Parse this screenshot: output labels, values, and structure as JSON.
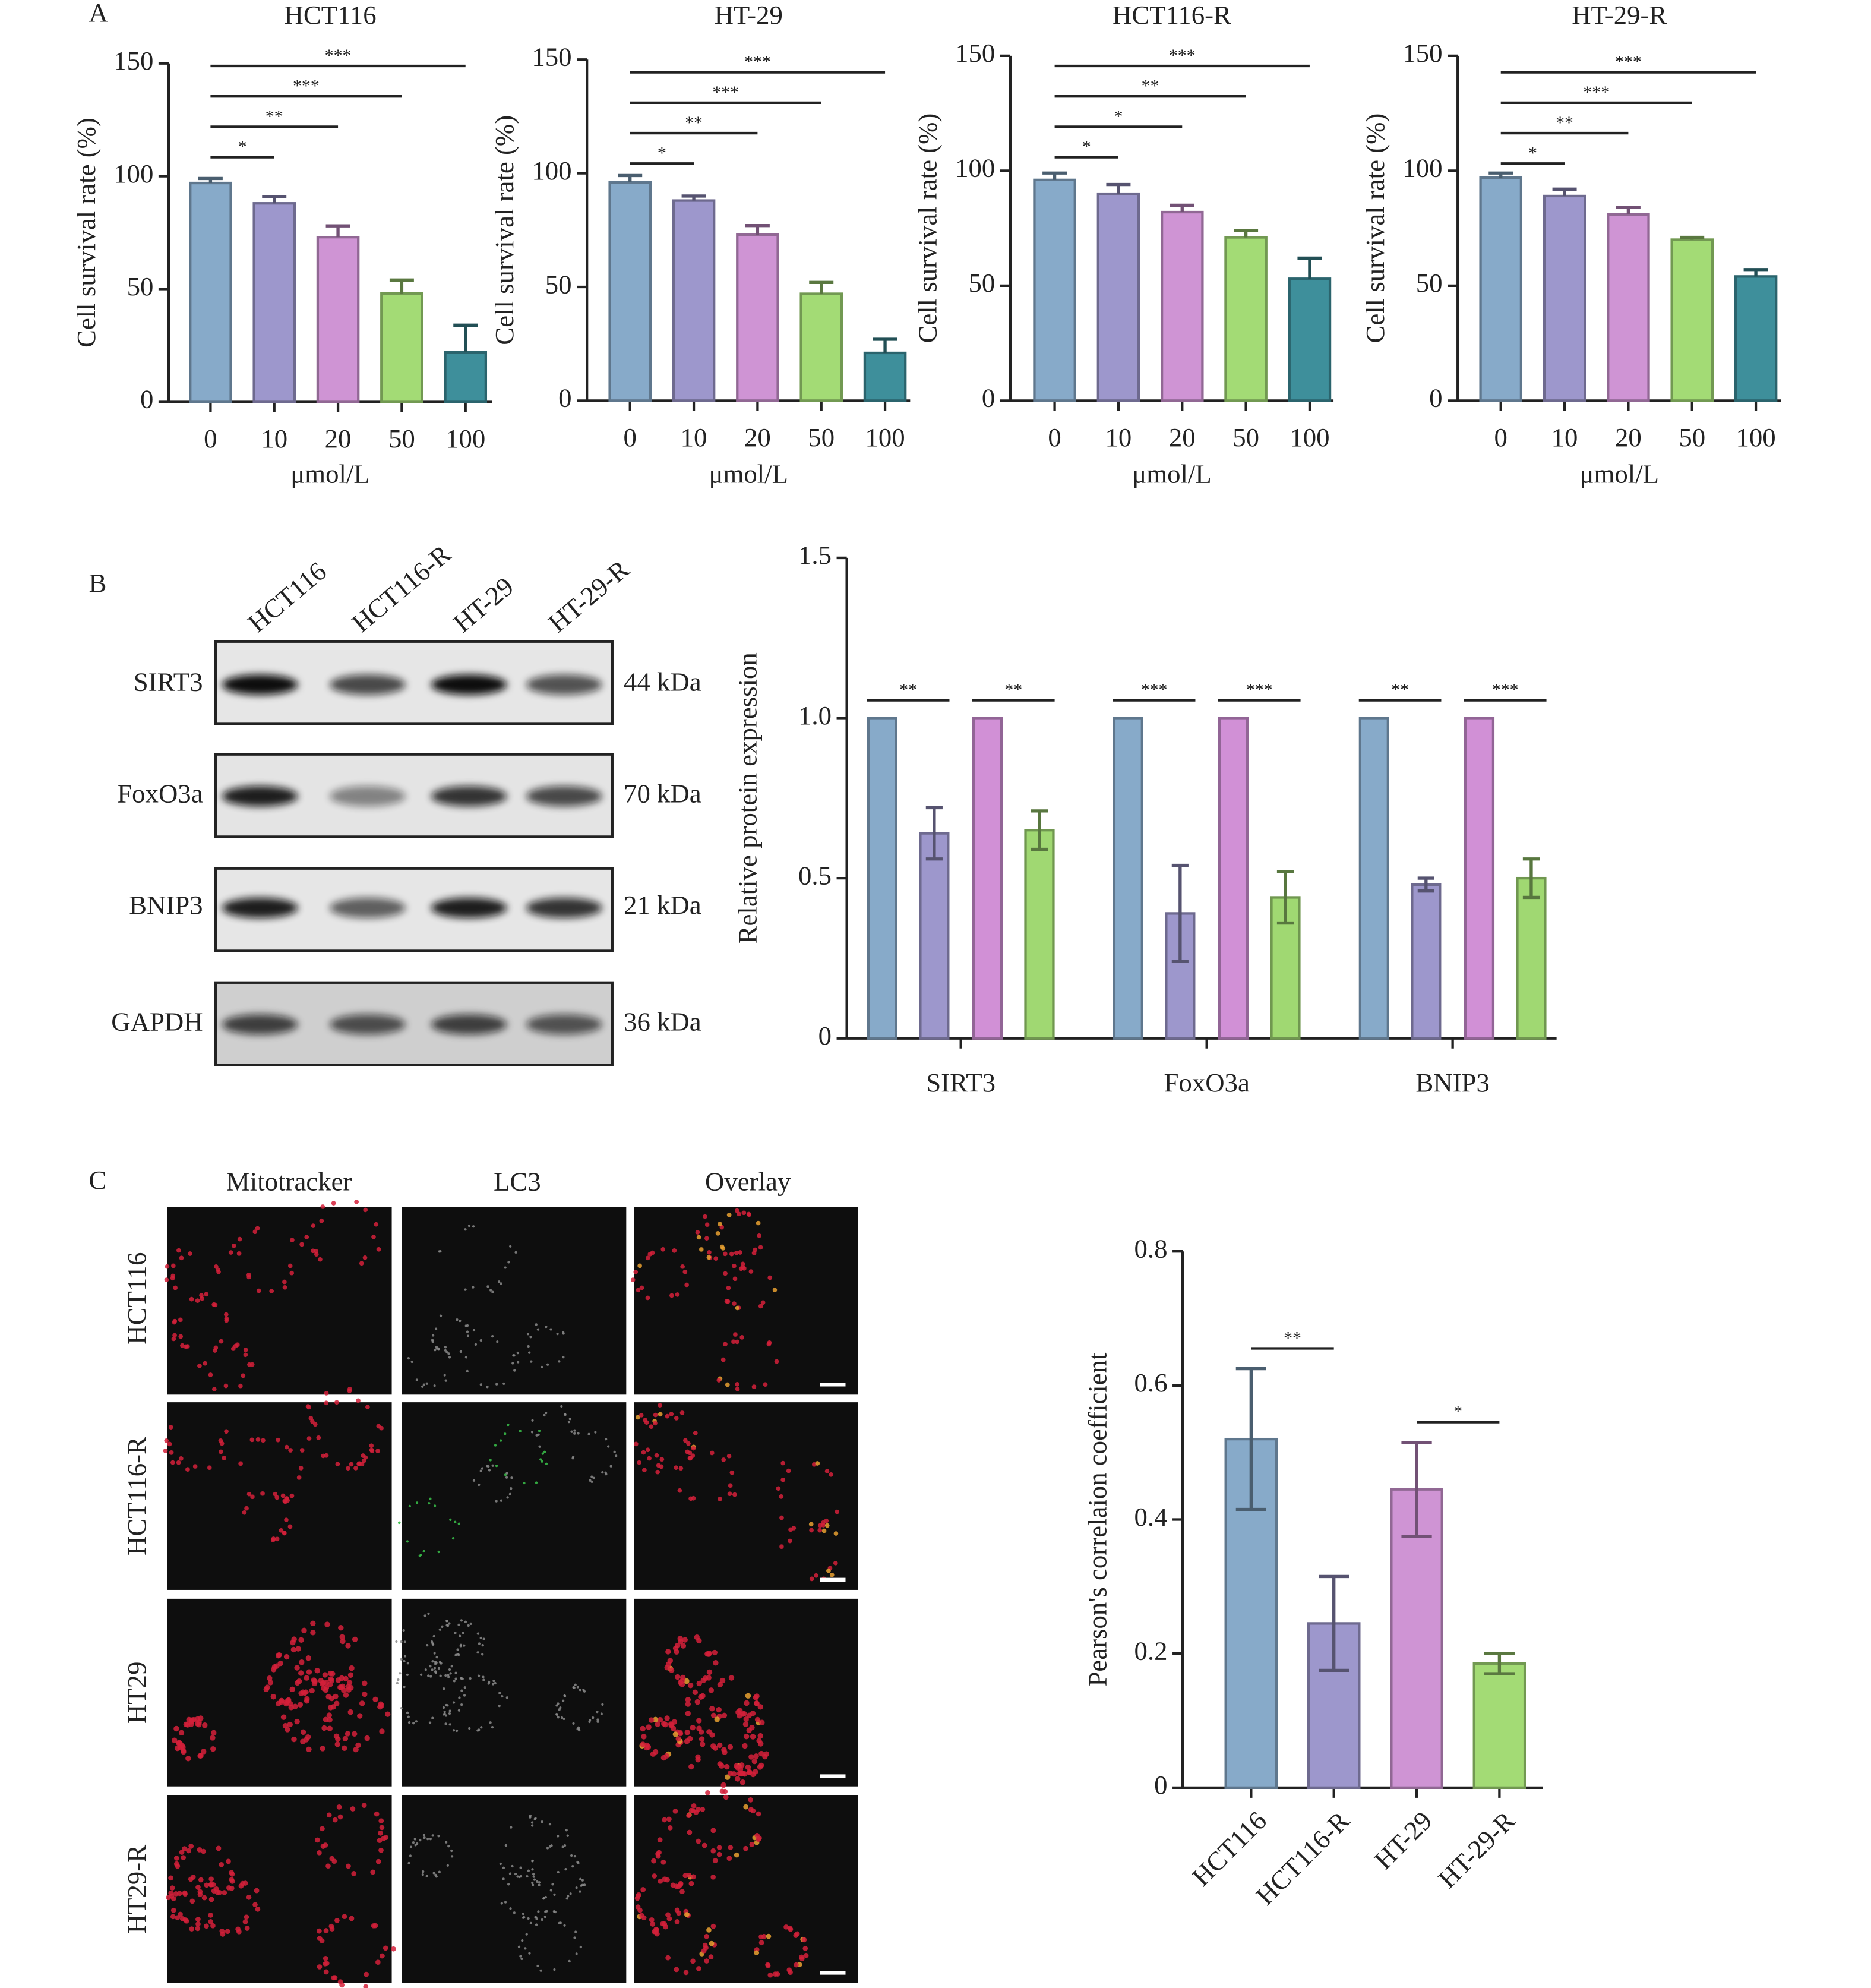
{
  "panel_labels": [
    "A",
    "B",
    "C"
  ],
  "chart_data": [
    {
      "type": "bar",
      "title": "HCT116",
      "xlabel": "μmol/L",
      "ylabel": "Cell survival rate (%)",
      "categories": [
        "0",
        "10",
        "20",
        "50",
        "100"
      ],
      "values": [
        97,
        88,
        73,
        48,
        22
      ],
      "errors": [
        2,
        3,
        5,
        6,
        12
      ],
      "colors": [
        "#87aac9",
        "#9d97cc",
        "#cf94d4",
        "#a3db75",
        "#3e8f9b"
      ],
      "ylim": [
        0,
        150
      ],
      "yticks": [
        0,
        50,
        100,
        150
      ],
      "error_bars": "up",
      "comparisons": [
        {
          "text": "*",
          "between": [
            0,
            1
          ]
        },
        {
          "text": "**",
          "between": [
            0,
            2
          ]
        },
        {
          "text": "***",
          "between": [
            0,
            3
          ]
        },
        {
          "text": "***",
          "between": [
            0,
            4
          ]
        }
      ]
    },
    {
      "type": "bar",
      "title": "HT-29",
      "xlabel": "μmol/L",
      "ylabel": "Cell survival rate (%)",
      "categories": [
        "0",
        "10",
        "20",
        "50",
        "100"
      ],
      "values": [
        96,
        88,
        73,
        47,
        21
      ],
      "errors": [
        3,
        2,
        4,
        5,
        6
      ],
      "colors": [
        "#87aac9",
        "#9d97cc",
        "#cf94d4",
        "#a3db75",
        "#3e8f9b"
      ],
      "ylim": [
        0,
        150
      ],
      "yticks": [
        0,
        50,
        100,
        150
      ],
      "error_bars": "up",
      "comparisons": [
        {
          "text": "*",
          "between": [
            0,
            1
          ]
        },
        {
          "text": "**",
          "between": [
            0,
            2
          ]
        },
        {
          "text": "***",
          "between": [
            0,
            3
          ]
        },
        {
          "text": "***",
          "between": [
            0,
            4
          ]
        }
      ]
    },
    {
      "type": "bar",
      "title": "HCT116-R",
      "xlabel": "μmol/L",
      "ylabel": "Cell survival rate (%)",
      "categories": [
        "0",
        "10",
        "20",
        "50",
        "100"
      ],
      "values": [
        96,
        90,
        82,
        71,
        53
      ],
      "errors": [
        3,
        4,
        3,
        3,
        9
      ],
      "colors": [
        "#87aac9",
        "#9d97cc",
        "#cf94d4",
        "#a3db75",
        "#3e8f9b"
      ],
      "ylim": [
        0,
        150
      ],
      "yticks": [
        0,
        50,
        100,
        150
      ],
      "error_bars": "up",
      "comparisons": [
        {
          "text": "*",
          "between": [
            0,
            1
          ]
        },
        {
          "text": "*",
          "between": [
            0,
            2
          ]
        },
        {
          "text": "**",
          "between": [
            0,
            3
          ]
        },
        {
          "text": "***",
          "between": [
            0,
            4
          ]
        }
      ]
    },
    {
      "type": "bar",
      "title": "HT-29-R",
      "xlabel": "μmol/L",
      "ylabel": "Cell survival rate (%)",
      "categories": [
        "0",
        "10",
        "20",
        "50",
        "100"
      ],
      "values": [
        97,
        89,
        81,
        70,
        54
      ],
      "errors": [
        2,
        3,
        3,
        1,
        3
      ],
      "colors": [
        "#87aac9",
        "#9d97cc",
        "#cf94d4",
        "#a3db75",
        "#3e8f9b"
      ],
      "ylim": [
        0,
        150
      ],
      "yticks": [
        0,
        50,
        100,
        150
      ],
      "error_bars": "up",
      "comparisons": [
        {
          "text": "*",
          "between": [
            0,
            1
          ]
        },
        {
          "text": "**",
          "between": [
            0,
            2
          ]
        },
        {
          "text": "***",
          "between": [
            0,
            3
          ]
        },
        {
          "text": "***",
          "between": [
            0,
            4
          ]
        }
      ]
    },
    {
      "type": "bar",
      "ylabel": "Relative protein expression",
      "categories": [
        "SIRT3",
        "FoxO3a",
        "BNIP3"
      ],
      "series": [
        {
          "color": "#87aac9",
          "values": [
            1,
            1,
            1
          ]
        },
        {
          "color": "#9d97cc",
          "values": [
            0.64,
            0.39,
            0.48
          ],
          "errors": [
            0.08,
            0.15,
            0.02
          ]
        },
        {
          "color": "#d190d6",
          "values": [
            1,
            1,
            1
          ]
        },
        {
          "color": "#a0d872",
          "values": [
            0.65,
            0.44,
            0.5
          ],
          "errors": [
            0.06,
            0.08,
            0.06
          ]
        }
      ],
      "ylim": [
        0,
        1.5
      ],
      "yticks": [
        0,
        0.5,
        {
          "value": 1,
          "label": "1.0"
        },
        1.5
      ],
      "error_bars": "both",
      "comparisons": [
        {
          "text": "**",
          "category": 0,
          "between": [
            0,
            1
          ]
        },
        {
          "text": "**",
          "category": 0,
          "between": [
            2,
            3
          ]
        },
        {
          "text": "***",
          "category": 1,
          "between": [
            0,
            1
          ]
        },
        {
          "text": "***",
          "category": 1,
          "between": [
            2,
            3
          ]
        },
        {
          "text": "**",
          "category": 2,
          "between": [
            0,
            1
          ]
        },
        {
          "text": "***",
          "category": 2,
          "between": [
            2,
            3
          ]
        }
      ]
    },
    {
      "type": "bar",
      "ylabel": "Pearson's correlaion coefficient",
      "categories": [
        "HCT116",
        "HCT116-R",
        "HT-29",
        "HT-29-R"
      ],
      "values": [
        0.52,
        0.245,
        0.445,
        0.185
      ],
      "errors": [
        0.105,
        0.07,
        0.07,
        0.015
      ],
      "colors": [
        "#87aac9",
        "#9d97cc",
        "#cf94d4",
        "#a3db75"
      ],
      "ylim": [
        0,
        0.8
      ],
      "yticks": [
        0,
        0.2,
        0.4,
        0.6,
        0.8
      ],
      "error_bars": "both",
      "comparisons": [
        {
          "text": "**",
          "between": [
            0,
            1
          ]
        },
        {
          "text": "*",
          "between": [
            2,
            3
          ]
        }
      ]
    }
  ],
  "western_blot": {
    "lanes": [
      "HCT116",
      "HCT116-R",
      "HT-29",
      "HT-29-R"
    ],
    "rows": [
      {
        "protein": "SIRT3",
        "size": "44 kDa"
      },
      {
        "protein": "FoxO3a",
        "size": "70 kDa"
      },
      {
        "protein": "BNIP3",
        "size": "21 kDa"
      },
      {
        "protein": "GAPDH",
        "size": "36 kDa"
      }
    ]
  },
  "microscopy": {
    "channels": [
      "Mitotracker",
      "LC3",
      "Overlay"
    ],
    "rows": [
      "HCT116",
      "HCT116-R",
      "HT29",
      "HT29-R"
    ]
  }
}
